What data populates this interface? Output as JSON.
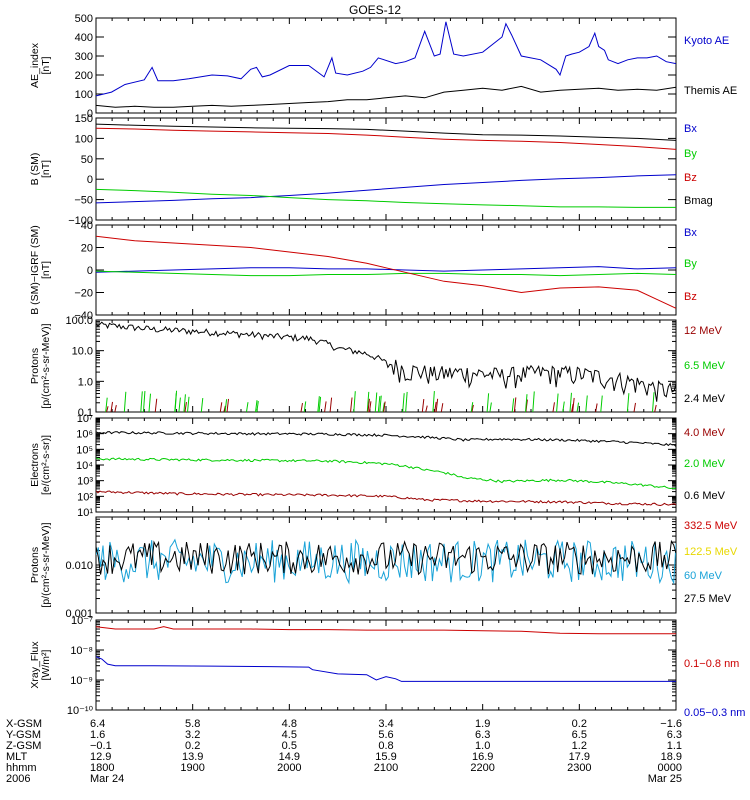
{
  "title": "GOES-12",
  "colors": {
    "black": "#000000",
    "blue": "#0000cc",
    "red": "#cc0000",
    "green": "#00cc00",
    "darkred": "#990000",
    "yellow": "#e8d800",
    "cyan": "#1aa3d8"
  },
  "chart_data": [
    {
      "type": "line",
      "ylabel": [
        "AE_index",
        "[nT]"
      ],
      "ylim": [
        0,
        500
      ],
      "yscale": "linear",
      "yticks": [
        {
          "v": 0,
          "label": "0"
        },
        {
          "v": 100,
          "label": "100"
        },
        {
          "v": 200,
          "label": "200"
        },
        {
          "v": 300,
          "label": "300"
        },
        {
          "v": 400,
          "label": "400"
        },
        {
          "v": 500,
          "label": "500"
        }
      ],
      "series": [
        {
          "name": "Kyoto AE",
          "color": "blue",
          "x": [
            0,
            8,
            15,
            25,
            29,
            32,
            40,
            48,
            60,
            68,
            75,
            80,
            83,
            86,
            90,
            100,
            110,
            118,
            122,
            124,
            130,
            138,
            142,
            146,
            155,
            160,
            165,
            170,
            175,
            178,
            181,
            185,
            190,
            200,
            210,
            212,
            215,
            220,
            230,
            238,
            240,
            243,
            246,
            250,
            255,
            258,
            260,
            263,
            265,
            270,
            275,
            280,
            285,
            290,
            295,
            300
          ],
          "y": [
            90,
            110,
            150,
            175,
            240,
            170,
            170,
            180,
            200,
            195,
            180,
            230,
            240,
            190,
            200,
            250,
            250,
            190,
            290,
            210,
            200,
            220,
            240,
            290,
            260,
            270,
            290,
            430,
            300,
            310,
            480,
            310,
            300,
            320,
            400,
            470,
            410,
            300,
            280,
            230,
            200,
            300,
            310,
            320,
            350,
            420,
            350,
            330,
            280,
            260,
            280,
            290,
            290,
            300,
            270,
            260
          ]
        },
        {
          "name": "Themis AE",
          "color": "black",
          "x": [
            0,
            10,
            20,
            30,
            40,
            50,
            60,
            70,
            80,
            90,
            100,
            110,
            120,
            130,
            140,
            150,
            160,
            170,
            180,
            190,
            200,
            210,
            220,
            230,
            240,
            250,
            260,
            270,
            280,
            290,
            300
          ],
          "y": [
            40,
            30,
            35,
            30,
            30,
            35,
            40,
            35,
            40,
            45,
            50,
            55,
            60,
            70,
            70,
            80,
            90,
            80,
            110,
            120,
            130,
            120,
            140,
            110,
            120,
            125,
            130,
            120,
            125,
            120,
            135
          ]
        }
      ]
    },
    {
      "type": "line",
      "ylabel": [
        "B (SM)",
        "[nT]"
      ],
      "ylim": [
        -100,
        150
      ],
      "yscale": "linear",
      "yticks": [
        {
          "v": -100,
          "label": "−100"
        },
        {
          "v": -50,
          "label": "−50"
        },
        {
          "v": 0,
          "label": "0"
        },
        {
          "v": 50,
          "label": "50"
        },
        {
          "v": 100,
          "label": "100"
        },
        {
          "v": 150,
          "label": "150"
        }
      ],
      "series": [
        {
          "name": "Bx",
          "color": "blue",
          "x": [
            0,
            20,
            40,
            60,
            80,
            100,
            120,
            140,
            160,
            180,
            200,
            220,
            240,
            260,
            280,
            300
          ],
          "y": [
            -58,
            -55,
            -52,
            -48,
            -45,
            -40,
            -34,
            -27,
            -20,
            -13,
            -8,
            -3,
            1,
            4,
            8,
            11
          ]
        },
        {
          "name": "By",
          "color": "green",
          "x": [
            0,
            20,
            40,
            60,
            80,
            100,
            120,
            140,
            160,
            180,
            200,
            220,
            240,
            260,
            280,
            300
          ],
          "y": [
            -25,
            -28,
            -32,
            -37,
            -40,
            -45,
            -50,
            -53,
            -57,
            -60,
            -63,
            -65,
            -68,
            -68,
            -69,
            -69
          ]
        },
        {
          "name": "Bz",
          "color": "red",
          "x": [
            0,
            20,
            40,
            60,
            80,
            100,
            120,
            140,
            160,
            180,
            200,
            220,
            240,
            260,
            280,
            300
          ],
          "y": [
            125,
            123,
            120,
            118,
            116,
            114,
            112,
            108,
            103,
            98,
            95,
            93,
            90,
            85,
            80,
            73
          ]
        },
        {
          "name": "Bmag",
          "color": "black",
          "x": [
            0,
            20,
            40,
            60,
            80,
            100,
            120,
            140,
            160,
            180,
            200,
            220,
            240,
            260,
            280,
            300
          ],
          "y": [
            135,
            132,
            130,
            128,
            126,
            125,
            124,
            122,
            118,
            113,
            109,
            108,
            106,
            103,
            100,
            95
          ]
        }
      ]
    },
    {
      "type": "line",
      "ylabel": [
        "B (SM)−IGRF (SM)",
        "[nT]"
      ],
      "ylim": [
        -40,
        40
      ],
      "yscale": "linear",
      "yticks": [
        {
          "v": -40,
          "label": "−40"
        },
        {
          "v": -20,
          "label": "−20"
        },
        {
          "v": 0,
          "label": "0"
        },
        {
          "v": 20,
          "label": "20"
        },
        {
          "v": 40,
          "label": "40"
        }
      ],
      "series": [
        {
          "name": "Bx",
          "color": "blue",
          "x": [
            0,
            20,
            40,
            60,
            80,
            100,
            120,
            140,
            160,
            180,
            200,
            220,
            240,
            260,
            280,
            300
          ],
          "y": [
            -2,
            -1,
            0,
            1,
            2,
            2,
            1,
            1,
            0,
            -1,
            0,
            1,
            2,
            3,
            1,
            2
          ]
        },
        {
          "name": "By",
          "color": "green",
          "x": [
            0,
            20,
            40,
            60,
            80,
            100,
            120,
            140,
            160,
            180,
            200,
            220,
            240,
            260,
            280,
            300
          ],
          "y": [
            -1,
            -2,
            -3,
            -4,
            -5,
            -5,
            -4,
            -4,
            -3,
            -3,
            -4,
            -4,
            -5,
            -4,
            -3,
            -4
          ]
        },
        {
          "name": "Bz",
          "color": "red",
          "x": [
            0,
            20,
            40,
            60,
            80,
            100,
            120,
            140,
            150,
            160,
            170,
            180,
            200,
            220,
            240,
            260,
            280,
            290,
            300
          ],
          "y": [
            30,
            26,
            24,
            22,
            20,
            16,
            12,
            6,
            2,
            -2,
            -6,
            -10,
            -14,
            -20,
            -16,
            -15,
            -18,
            -26,
            -34
          ]
        }
      ]
    },
    {
      "type": "line",
      "ylabel": [
        "Protons",
        "[p/(cm²-s-sr-MeV)]"
      ],
      "ylim": [
        0.1,
        100
      ],
      "yscale": "log",
      "yticks": [
        {
          "v": 0.1,
          "label": "0.1"
        },
        {
          "v": 1,
          "label": "1.0"
        },
        {
          "v": 10,
          "label": "10.0"
        },
        {
          "v": 100,
          "label": "100.0"
        }
      ],
      "series": [
        {
          "name": "12 MeV",
          "color": "darkred",
          "x": [],
          "y": []
        },
        {
          "name": "6.5 MeV",
          "color": "green",
          "x": [],
          "y": []
        },
        {
          "name": "2.4 MeV",
          "color": "black",
          "x": [
            0,
            30,
            60,
            90,
            110,
            125,
            140,
            150,
            160,
            175,
            190,
            210,
            230,
            250,
            270,
            290,
            300
          ],
          "y": [
            70,
            50,
            40,
            30,
            25,
            12,
            8,
            4,
            2.5,
            1.8,
            2.0,
            1.6,
            2.0,
            1.8,
            1.2,
            0.6,
            0.5
          ]
        }
      ]
    },
    {
      "type": "line",
      "ylabel": [
        "Electrons",
        "[e/(cm²-s-sr)]"
      ],
      "ylim": [
        10,
        10000000
      ],
      "yscale": "log",
      "yticks": [
        {
          "v": 10,
          "label": "10¹"
        },
        {
          "v": 100,
          "label": "10²"
        },
        {
          "v": 1000,
          "label": "10³"
        },
        {
          "v": 10000,
          "label": "10⁴"
        },
        {
          "v": 100000,
          "label": "10⁵"
        },
        {
          "v": 1000000,
          "label": "10⁶"
        },
        {
          "v": 10000000,
          "label": "10⁷"
        }
      ],
      "series": [
        {
          "name": "4.0 MeV",
          "color": "darkred",
          "x": [
            0,
            40,
            80,
            120,
            150,
            170,
            200,
            240,
            270,
            300
          ],
          "y": [
            200,
            150,
            130,
            120,
            100,
            60,
            50,
            45,
            35,
            30
          ]
        },
        {
          "name": "2.0 MeV",
          "color": "green",
          "x": [
            0,
            40,
            80,
            120,
            150,
            170,
            190,
            210,
            240,
            270,
            300
          ],
          "y": [
            25000,
            22000,
            20000,
            18000,
            12000,
            5000,
            1500,
            900,
            1100,
            700,
            300
          ]
        },
        {
          "name": "0.6 MeV",
          "color": "black",
          "x": [
            0,
            40,
            80,
            120,
            150,
            170,
            190,
            210,
            240,
            270,
            300
          ],
          "y": [
            1200000,
            1100000,
            1000000,
            950000,
            800000,
            600000,
            400000,
            450000,
            400000,
            300000,
            180000
          ]
        }
      ]
    },
    {
      "type": "line",
      "ylabel": [
        "Protons",
        "[p/(cm²-s-sr-MeV)]"
      ],
      "ylim": [
        0.001,
        0.1
      ],
      "yscale": "log",
      "yticks": [
        {
          "v": 0.001,
          "label": "0.001"
        },
        {
          "v": 0.01,
          "label": "0.010"
        }
      ],
      "series": [
        {
          "name": "332.5 MeV",
          "color": "red",
          "x": [],
          "y": []
        },
        {
          "name": "122.5 MeV",
          "color": "yellow",
          "x": [],
          "y": []
        },
        {
          "name": "60 MeV",
          "color": "cyan",
          "x": [],
          "y": []
        },
        {
          "name": "27.5 MeV",
          "color": "black",
          "x": [],
          "y": []
        }
      ]
    },
    {
      "type": "line",
      "ylabel": [
        "Xray_Flux",
        "[W/m²]"
      ],
      "ylim": [
        1e-10,
        1e-07
      ],
      "yscale": "log",
      "yticks": [
        {
          "v": 1e-10,
          "label": "10⁻¹⁰"
        },
        {
          "v": 1e-09,
          "label": "10⁻⁹"
        },
        {
          "v": 1e-08,
          "label": "10⁻⁸"
        },
        {
          "v": 1e-07,
          "label": "10⁻⁷"
        }
      ],
      "series": [
        {
          "name": "0.1−0.8 nm",
          "color": "red",
          "x": [
            0,
            10,
            30,
            35,
            40,
            60,
            80,
            100,
            120,
            140,
            160,
            180,
            200,
            220,
            240,
            260,
            280,
            300
          ],
          "y": [
            6e-08,
            5e-08,
            5e-08,
            6e-08,
            5e-08,
            5e-08,
            5e-08,
            4.8e-08,
            4.8e-08,
            4.6e-08,
            4.6e-08,
            4.6e-08,
            4.4e-08,
            4.2e-08,
            3.6e-08,
            3.5e-08,
            3.5e-08,
            3.5e-08
          ]
        },
        {
          "name": "0.05−0.3 nm",
          "color": "blue",
          "x": [
            0,
            3,
            6,
            10,
            30,
            60,
            90,
            110,
            112,
            125,
            140,
            145,
            150,
            155,
            158,
            160,
            190,
            220,
            260,
            300
          ],
          "y": [
            6e-09,
            5e-09,
            3.4e-09,
            3e-09,
            3e-09,
            2.9e-09,
            2.8e-09,
            2.7e-09,
            2.2e-09,
            1.6e-09,
            1.5e-09,
            1e-09,
            1.3e-09,
            1.1e-09,
            9e-10,
            9e-10,
            9e-10,
            9e-10,
            9e-10,
            9e-10
          ]
        }
      ]
    }
  ],
  "axis": {
    "xlim": [
      0,
      300
    ],
    "rows": [
      {
        "label": "X-GSM",
        "values": [
          "6.4",
          "5.8",
          "4.8",
          "3.4",
          "1.9",
          "0.2",
          "−1.6"
        ]
      },
      {
        "label": "Y-GSM",
        "values": [
          "1.6",
          "3.2",
          "4.5",
          "5.6",
          "6.3",
          "6.5",
          "6.3"
        ]
      },
      {
        "label": "Z-GSM",
        "values": [
          "−0.1",
          "0.2",
          "0.5",
          "0.8",
          "1.0",
          "1.2",
          "1.1"
        ]
      },
      {
        "label": "MLT",
        "values": [
          "12.9",
          "13.9",
          "14.9",
          "15.9",
          "16.9",
          "17.9",
          "18.9"
        ]
      },
      {
        "label": "hhmm",
        "values": [
          "1800",
          "1900",
          "2000",
          "2100",
          "2200",
          "2300",
          "0000"
        ]
      },
      {
        "label": "2006",
        "values": [
          "Mar 24",
          "",
          "",
          "",
          "",
          "",
          "Mar 25"
        ]
      }
    ]
  }
}
